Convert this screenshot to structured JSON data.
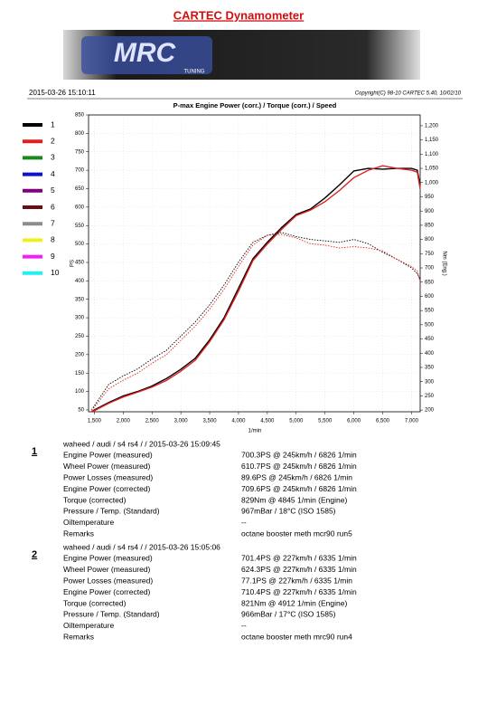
{
  "header": {
    "title": "CARTEC Dynamometer",
    "logo_main": "MRC",
    "logo_sub": "TUNING",
    "timestamp": "2015-03-26 15:10:11",
    "copyright": "Copyright(C) 98-10 CARTEC 5.40, 10/02/10"
  },
  "chart_data": {
    "type": "line",
    "title": "P-max Engine Power (corr.) / Torque (corr.) / Speed",
    "y_label": "PS",
    "y2_label": "Nm (Eng.)",
    "x_label": "1/min",
    "xlim": [
      1400,
      7150
    ],
    "xticks": [
      {
        "value": 1500,
        "label": "1,500"
      },
      {
        "value": 2000,
        "label": "2,000"
      },
      {
        "value": 2500,
        "label": "2,500"
      },
      {
        "value": 3000,
        "label": "3,000"
      },
      {
        "value": 3500,
        "label": "3,500"
      },
      {
        "value": 4000,
        "label": "4,000"
      },
      {
        "value": 4500,
        "label": "4,500"
      },
      {
        "value": 5000,
        "label": "5,000"
      },
      {
        "value": 5500,
        "label": "5,500"
      },
      {
        "value": 6000,
        "label": "6,000"
      },
      {
        "value": 6500,
        "label": "6,500"
      },
      {
        "value": 7000,
        "label": "7,000"
      }
    ],
    "ylim": [
      45,
      850
    ],
    "yticks": [
      50,
      100,
      150,
      200,
      250,
      300,
      350,
      400,
      450,
      500,
      550,
      600,
      650,
      700,
      750,
      800,
      850
    ],
    "y2lim": [
      194,
      1238
    ],
    "y2ticks": [
      200,
      250,
      300,
      350,
      400,
      450,
      500,
      550,
      600,
      650,
      700,
      750,
      800,
      850,
      900,
      950,
      {
        "value": 1000,
        "label": "1,000"
      },
      {
        "value": 1050,
        "label": "1,050"
      },
      {
        "value": 1100,
        "label": "1,100"
      },
      {
        "value": 1150,
        "label": "1,150"
      },
      {
        "value": 1200,
        "label": "1,200"
      }
    ],
    "grid": true,
    "legend": [
      {
        "label": "1",
        "color": "#000000"
      },
      {
        "label": "2",
        "color": "#e02020"
      },
      {
        "label": "3",
        "color": "#1a8a1a"
      },
      {
        "label": "4",
        "color": "#1010d0"
      },
      {
        "label": "5",
        "color": "#800080"
      },
      {
        "label": "6",
        "color": "#6b0d0d"
      },
      {
        "label": "7",
        "color": "#8c8c8c"
      },
      {
        "label": "8",
        "color": "#f0f020"
      },
      {
        "label": "9",
        "color": "#f020f0"
      },
      {
        "label": "10",
        "color": "#20f0f0"
      }
    ],
    "x": [
      1450,
      1500,
      1750,
      2000,
      2250,
      2500,
      2750,
      3000,
      3250,
      3500,
      3750,
      4000,
      4250,
      4500,
      4750,
      5000,
      5250,
      5500,
      5750,
      6000,
      6250,
      6500,
      6750,
      7000,
      7100,
      7150
    ],
    "series": [
      {
        "color": "#000000",
        "style": "solid",
        "axis": "y",
        "values": [
          45,
          50,
          70,
          88,
          100,
          115,
          135,
          160,
          190,
          240,
          300,
          380,
          460,
          505,
          545,
          580,
          595,
          625,
          660,
          698,
          705,
          703,
          705,
          705,
          700,
          660
        ]
      },
      {
        "color": "#e02020",
        "style": "solid",
        "axis": "y",
        "values": [
          45,
          48,
          68,
          85,
          98,
          112,
          130,
          155,
          185,
          235,
          295,
          372,
          455,
          500,
          540,
          577,
          592,
          615,
          645,
          680,
          700,
          712,
          705,
          700,
          695,
          650
        ]
      },
      {
        "color": "#000000",
        "style": "dotted",
        "axis": "y2",
        "values": [
          200,
          215,
          290,
          320,
          345,
          380,
          410,
          460,
          510,
          570,
          640,
          720,
          790,
          815,
          825,
          810,
          800,
          795,
          790,
          800,
          785,
          755,
          730,
          700,
          680,
          660
        ]
      },
      {
        "color": "#e02020",
        "style": "dotted",
        "axis": "y2",
        "values": [
          200,
          210,
          275,
          305,
          330,
          365,
          395,
          445,
          495,
          555,
          625,
          705,
          780,
          815,
          818,
          805,
          785,
          780,
          770,
          775,
          770,
          760,
          730,
          705,
          690,
          650
        ]
      }
    ]
  },
  "runs": [
    {
      "number": "1",
      "header": "waheed / audi / s4 rs4 /  / 2015-03-26 15:09:45",
      "rows": [
        [
          "Engine Power (measured)",
          "700.3PS @ 245km/h / 6826 1/min"
        ],
        [
          "Wheel Power (measured)",
          "610.7PS @ 245km/h / 6826 1/min"
        ],
        [
          "Power Losses (measured)",
          "89.6PS @ 245km/h / 6826 1/min"
        ],
        [
          "Engine Power (corrected)",
          "709.6PS @ 245km/h / 6826 1/min"
        ],
        [
          "Torque (corrected)",
          "829Nm @ 4845 1/min (Engine)"
        ],
        [
          "Pressure / Temp. (Standard)",
          "967mBar / 18°C  (ISO 1585)"
        ],
        [
          "Oiltemperature",
          "--"
        ],
        [
          "Remarks",
          "octane booster meth mcr90 run5"
        ]
      ]
    },
    {
      "number": "2",
      "header": "waheed / audi / s4 rs4 /  / 2015-03-26 15:05:06",
      "rows": [
        [
          "Engine Power (measured)",
          "701.4PS @ 227km/h / 6335 1/min"
        ],
        [
          "Wheel Power (measured)",
          "624.3PS @ 227km/h / 6335 1/min"
        ],
        [
          "Power Losses (measured)",
          "77.1PS @ 227km/h / 6335 1/min"
        ],
        [
          "Engine Power (corrected)",
          "710.4PS @ 227km/h / 6335 1/min"
        ],
        [
          "Torque (corrected)",
          "821Nm @ 4912 1/min (Engine)"
        ],
        [
          "Pressure / Temp. (Standard)",
          "966mBar / 17°C  (ISO 1585)"
        ],
        [
          "Oiltemperature",
          "--"
        ],
        [
          "Remarks",
          "octane booster meth mrc90 run4"
        ]
      ]
    }
  ]
}
